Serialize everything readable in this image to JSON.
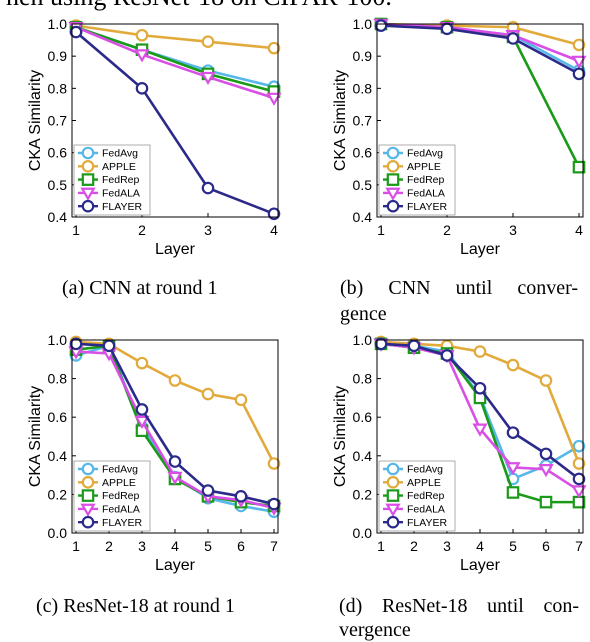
{
  "header_text": "hen using ResNet-18 on CIFAR-100.",
  "colors": {
    "FedAvg": "#55b8e8",
    "APPLE": "#e2a93b",
    "FedRep": "#1a9a18",
    "FedALA": "#d94fe6",
    "FLAYER": "#2b2a8a"
  },
  "markers": {
    "FedAvg": "circle",
    "APPLE": "circle",
    "FedRep": "square",
    "FedALA": "triangle-down",
    "FLAYER": "circle"
  },
  "chart_data": [
    {
      "type": "line",
      "caption": "(a) CNN at round 1",
      "xlabel": "Layer",
      "ylabel": "CKA Similarity",
      "x": [
        1,
        2,
        3,
        4
      ],
      "ylim": [
        0.4,
        1.0
      ],
      "yticks": [
        "0.4",
        "0.5",
        "0.6",
        "0.7",
        "0.8",
        "0.9",
        "1.0"
      ],
      "xticks": [
        "1",
        "2",
        "3",
        "4"
      ],
      "legend_position": "bottom-left",
      "series": [
        {
          "name": "FedAvg",
          "values": [
            0.99,
            0.92,
            0.855,
            0.805
          ]
        },
        {
          "name": "APPLE",
          "values": [
            0.995,
            0.965,
            0.945,
            0.925
          ]
        },
        {
          "name": "FedRep",
          "values": [
            0.99,
            0.92,
            0.845,
            0.79
          ]
        },
        {
          "name": "FedALA",
          "values": [
            0.99,
            0.905,
            0.835,
            0.77
          ]
        },
        {
          "name": "FLAYER",
          "values": [
            0.975,
            0.8,
            0.49,
            0.41
          ]
        }
      ]
    },
    {
      "type": "line",
      "caption_line1": "(b) CNN until conver-",
      "caption_line2": "gence",
      "xlabel": "Layer",
      "ylabel": "CKA Similarity",
      "x": [
        1,
        2,
        3,
        4
      ],
      "ylim": [
        0.4,
        1.0
      ],
      "yticks": [
        "0.4",
        "0.5",
        "0.6",
        "0.7",
        "0.8",
        "0.9",
        "1.0"
      ],
      "xticks": [
        "1",
        "2",
        "3",
        "4"
      ],
      "legend_position": "bottom-left",
      "series": [
        {
          "name": "FedAvg",
          "values": [
            1.0,
            0.99,
            0.965,
            0.855
          ]
        },
        {
          "name": "APPLE",
          "values": [
            1.0,
            0.995,
            0.99,
            0.935
          ]
        },
        {
          "name": "FedRep",
          "values": [
            1.0,
            0.99,
            0.96,
            0.555
          ]
        },
        {
          "name": "FedALA",
          "values": [
            1.0,
            0.99,
            0.965,
            0.885
          ]
        },
        {
          "name": "FLAYER",
          "values": [
            0.995,
            0.985,
            0.955,
            0.845
          ]
        }
      ]
    },
    {
      "type": "line",
      "caption": "(c) ResNet-18 at round 1",
      "xlabel": "Layer",
      "ylabel": "CKA Similarity",
      "x": [
        1,
        2,
        3,
        4,
        5,
        6,
        7
      ],
      "ylim": [
        0.0,
        1.0
      ],
      "yticks": [
        "0.0",
        "0.2",
        "0.4",
        "0.6",
        "0.8",
        "1.0"
      ],
      "xticks": [
        "1",
        "2",
        "3",
        "4",
        "5",
        "6",
        "7"
      ],
      "legend_position": "bottom-left",
      "series": [
        {
          "name": "FedAvg",
          "values": [
            0.92,
            0.97,
            0.55,
            0.29,
            0.18,
            0.14,
            0.11
          ]
        },
        {
          "name": "APPLE",
          "values": [
            0.99,
            0.98,
            0.88,
            0.79,
            0.72,
            0.69,
            0.36
          ]
        },
        {
          "name": "FedRep",
          "values": [
            0.95,
            0.97,
            0.53,
            0.28,
            0.19,
            0.16,
            0.14
          ]
        },
        {
          "name": "FedALA",
          "values": [
            0.94,
            0.93,
            0.58,
            0.29,
            0.19,
            0.17,
            0.13
          ]
        },
        {
          "name": "FLAYER",
          "values": [
            0.98,
            0.97,
            0.64,
            0.37,
            0.22,
            0.19,
            0.15
          ]
        }
      ]
    },
    {
      "type": "line",
      "caption_line1": "(d) ResNet-18 until con-",
      "caption_line2": "vergence",
      "xlabel": "Layer",
      "ylabel": "CKA Similarity",
      "x": [
        1,
        2,
        3,
        4,
        5,
        6,
        7
      ],
      "ylim": [
        0.0,
        1.0
      ],
      "yticks": [
        "0.0",
        "0.2",
        "0.4",
        "0.6",
        "0.8",
        "1.0"
      ],
      "xticks": [
        "1",
        "2",
        "3",
        "4",
        "5",
        "6",
        "7"
      ],
      "legend_position": "bottom-left",
      "series": [
        {
          "name": "FedAvg",
          "values": [
            0.98,
            0.97,
            0.94,
            0.71,
            0.28,
            0.35,
            0.45
          ]
        },
        {
          "name": "APPLE",
          "values": [
            0.99,
            0.98,
            0.97,
            0.94,
            0.87,
            0.79,
            0.36
          ]
        },
        {
          "name": "FedRep",
          "values": [
            0.98,
            0.96,
            0.93,
            0.7,
            0.21,
            0.16,
            0.16
          ]
        },
        {
          "name": "FedALA",
          "values": [
            0.98,
            0.96,
            0.92,
            0.54,
            0.34,
            0.33,
            0.22
          ]
        },
        {
          "name": "FLAYER",
          "values": [
            0.98,
            0.97,
            0.92,
            0.75,
            0.52,
            0.41,
            0.28
          ]
        }
      ]
    }
  ]
}
